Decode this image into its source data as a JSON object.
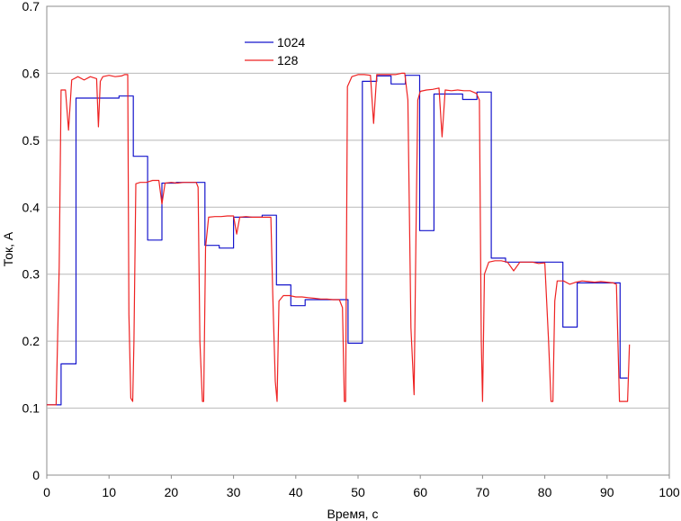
{
  "chart_data": {
    "type": "line",
    "title": "",
    "xlabel": "Время, с",
    "ylabel": "Ток, А",
    "xlim": [
      0,
      100
    ],
    "ylim": [
      0,
      0.7
    ],
    "xticks": [
      0,
      10,
      20,
      30,
      40,
      50,
      60,
      70,
      80,
      90,
      100
    ],
    "yticks": [
      0,
      0.1,
      0.2,
      0.3,
      0.4,
      0.5,
      0.6,
      0.7
    ],
    "ytick_labels": [
      "0",
      "0.1",
      "0.2",
      "0.3",
      "0.4",
      "0.5",
      "0.6",
      "0.7"
    ],
    "grid": "horizontal",
    "legend_placement": "top-center",
    "series": [
      {
        "name": "1024",
        "color": "#1515cc",
        "x": [
          0,
          2.3,
          2.3,
          4.7,
          4.7,
          7,
          7,
          9.3,
          9.3,
          11.6,
          11.6,
          13.9,
          13.9,
          16.2,
          16.2,
          18.5,
          18.5,
          20.8,
          20.8,
          23.1,
          23.1,
          25.4,
          25.4,
          27.7,
          27.7,
          30,
          30,
          32.3,
          32.3,
          34.6,
          34.6,
          36.9,
          36.9,
          39.2,
          39.2,
          41.5,
          41.5,
          43.8,
          43.8,
          46.1,
          46.1,
          48.4,
          48.4,
          50.7,
          50.7,
          53,
          53,
          55.3,
          55.3,
          57.6,
          57.6,
          59.9,
          59.9,
          62.2,
          62.2,
          64.5,
          64.5,
          66.8,
          66.8,
          69.1,
          69.1,
          71.4,
          71.4,
          73.7,
          73.7,
          76,
          76,
          78.3,
          78.3,
          80.6,
          80.6,
          82.9,
          82.9,
          85.2,
          85.2,
          87.5,
          87.5,
          89.8,
          89.8,
          92.1,
          92.1,
          93.3
        ],
        "y": [
          0.105,
          0.105,
          0.166,
          0.166,
          0.563,
          0.563,
          0.563,
          0.563,
          0.563,
          0.563,
          0.566,
          0.566,
          0.476,
          0.476,
          0.351,
          0.351,
          0.436,
          0.436,
          0.437,
          0.437,
          0.437,
          0.437,
          0.343,
          0.343,
          0.339,
          0.339,
          0.385,
          0.385,
          0.385,
          0.385,
          0.388,
          0.388,
          0.284,
          0.284,
          0.253,
          0.253,
          0.262,
          0.262,
          0.262,
          0.262,
          0.262,
          0.262,
          0.197,
          0.197,
          0.588,
          0.588,
          0.596,
          0.596,
          0.584,
          0.584,
          0.597,
          0.597,
          0.365,
          0.365,
          0.569,
          0.569,
          0.569,
          0.569,
          0.561,
          0.561,
          0.572,
          0.572,
          0.324,
          0.324,
          0.318,
          0.318,
          0.318,
          0.318,
          0.318,
          0.318,
          0.318,
          0.318,
          0.221,
          0.221,
          0.287,
          0.287,
          0.287,
          0.287,
          0.287,
          0.287,
          0.145,
          0.145
        ]
      },
      {
        "name": "128",
        "color": "#ee2222",
        "x": [
          0,
          1.5,
          2,
          2.3,
          3,
          3.5,
          4,
          5,
          6,
          7,
          8,
          8.3,
          8.6,
          9,
          10,
          11,
          12,
          12.5,
          13,
          13.2,
          13.5,
          13.8,
          14,
          14.3,
          15,
          16,
          17,
          18,
          18.5,
          19,
          20,
          21,
          22,
          23,
          24,
          24.3,
          24.6,
          25,
          25.2,
          25.5,
          26,
          27,
          28,
          29,
          30,
          30.5,
          31,
          32,
          33,
          34,
          35,
          36,
          36.3,
          36.7,
          37,
          37.3,
          38,
          39,
          40,
          41,
          42,
          43,
          44,
          45,
          46,
          47,
          47.5,
          47.8,
          48,
          48.3,
          49,
          50,
          51,
          52,
          52.5,
          53,
          54,
          55,
          56,
          57,
          57.5,
          58,
          58.5,
          59,
          59.3,
          59.6,
          60,
          61,
          62,
          63,
          63.5,
          64,
          65,
          66,
          67,
          68,
          69,
          69.5,
          69.8,
          70,
          70.3,
          71,
          72,
          73,
          74,
          75,
          76,
          77,
          78,
          79,
          80,
          80.6,
          81,
          81.3,
          81.6,
          82,
          83,
          84,
          85,
          86,
          87,
          88,
          89,
          90,
          91,
          91.5,
          92,
          93,
          93.3,
          93.6
        ],
        "y": [
          0.105,
          0.105,
          0.31,
          0.575,
          0.575,
          0.515,
          0.59,
          0.595,
          0.59,
          0.595,
          0.592,
          0.52,
          0.588,
          0.595,
          0.597,
          0.595,
          0.596,
          0.598,
          0.598,
          0.24,
          0.115,
          0.11,
          0.2,
          0.435,
          0.437,
          0.437,
          0.44,
          0.44,
          0.405,
          0.436,
          0.437,
          0.436,
          0.437,
          0.437,
          0.437,
          0.43,
          0.2,
          0.11,
          0.11,
          0.34,
          0.385,
          0.386,
          0.386,
          0.387,
          0.387,
          0.36,
          0.385,
          0.386,
          0.385,
          0.385,
          0.385,
          0.385,
          0.27,
          0.14,
          0.11,
          0.26,
          0.268,
          0.268,
          0.266,
          0.266,
          0.265,
          0.264,
          0.263,
          0.263,
          0.262,
          0.262,
          0.25,
          0.11,
          0.11,
          0.58,
          0.595,
          0.598,
          0.598,
          0.597,
          0.525,
          0.598,
          0.598,
          0.598,
          0.598,
          0.6,
          0.6,
          0.56,
          0.22,
          0.12,
          0.36,
          0.56,
          0.573,
          0.575,
          0.576,
          0.578,
          0.505,
          0.575,
          0.574,
          0.575,
          0.574,
          0.574,
          0.57,
          0.56,
          0.2,
          0.11,
          0.3,
          0.318,
          0.32,
          0.32,
          0.318,
          0.305,
          0.318,
          0.318,
          0.318,
          0.316,
          0.317,
          0.2,
          0.11,
          0.11,
          0.26,
          0.29,
          0.29,
          0.285,
          0.288,
          0.29,
          0.289,
          0.288,
          0.289,
          0.288,
          0.287,
          0.285,
          0.11,
          0.11,
          0.11,
          0.195
        ]
      }
    ]
  }
}
